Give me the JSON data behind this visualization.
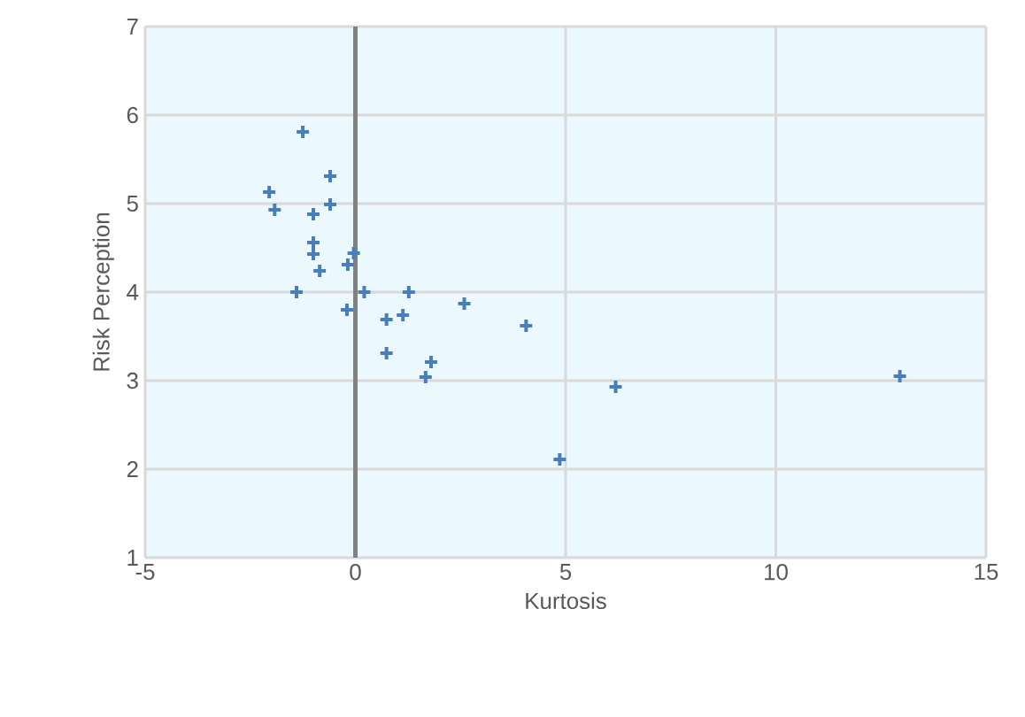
{
  "chart_data": {
    "type": "scatter",
    "xlabel": "Kurtosis",
    "ylabel": "Risk Perception",
    "xlim": [
      -5,
      15
    ],
    "xticks": [
      -5,
      0,
      5,
      10,
      15
    ],
    "ylim": [
      1,
      7
    ],
    "yticks": [
      1,
      2,
      3,
      4,
      5,
      6,
      7
    ],
    "grid": true,
    "marker": "cross",
    "series": [
      {
        "color": "#4a7ebb",
        "x": [
          -1.25,
          -0.6,
          -2.05,
          -1.92,
          -0.6,
          -1.0,
          -1.0,
          -1.0,
          -0.85,
          -0.04,
          -0.18,
          -1.4,
          0.21,
          1.27,
          2.59,
          4.06,
          -0.2,
          0.74,
          1.13,
          0.74,
          1.8,
          1.67,
          6.19,
          12.95,
          4.86
        ],
        "values": [
          5.81,
          5.31,
          5.13,
          4.93,
          4.99,
          4.88,
          4.56,
          4.43,
          4.24,
          4.44,
          4.31,
          4.0,
          4.0,
          4.0,
          3.87,
          3.62,
          3.8,
          3.69,
          3.74,
          3.31,
          3.21,
          3.04,
          2.93,
          3.05,
          2.11
        ]
      }
    ]
  }
}
